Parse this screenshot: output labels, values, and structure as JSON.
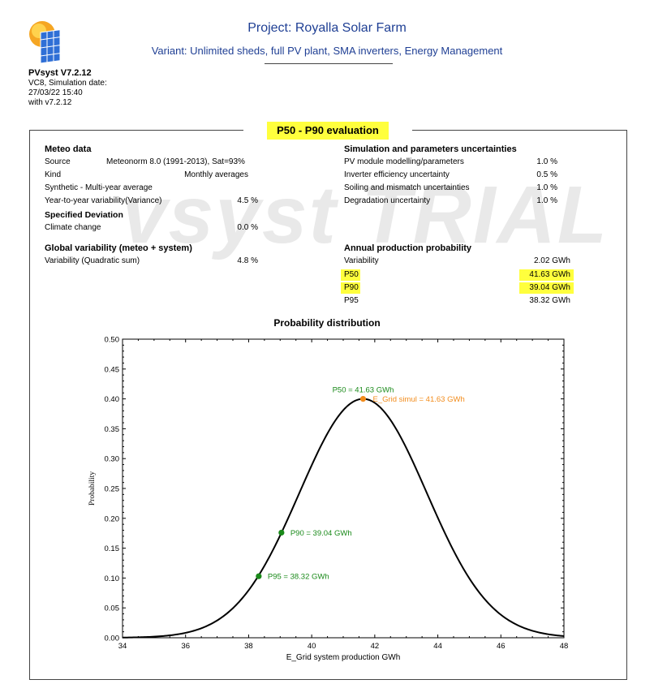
{
  "header": {
    "project_title": "Project: Royalla Solar Farm",
    "variant": "Variant: Unlimited sheds, full PV plant, SMA inverters, Energy Management"
  },
  "app": {
    "name": "PVsyst V7.2.12",
    "line1": "VC8, Simulation date:",
    "line2": "27/03/22 15:40",
    "line3": "with v7.2.12",
    "logo_icon": "pvsyst-logo-icon"
  },
  "section": {
    "title": "P50 - P90 evaluation",
    "watermark": "vsyst TRIAL"
  },
  "meteo": {
    "heading": "Meteo data",
    "source_label": "Source",
    "source_value": "Meteonorm 8.0 (1991-2013), Sat=93%",
    "kind_label": "Kind",
    "kind_value": "Monthly averages",
    "synthetic_label": "Synthetic - Multi-year average",
    "variability_label": "Year-to-year variability(Variance)",
    "variability_value": "4.5 %",
    "specified_heading": "Specified Deviation",
    "climate_label": "Climate change",
    "climate_value": "0.0 %"
  },
  "global": {
    "heading": "Global variability (meteo + system)",
    "label": "Variability (Quadratic sum)",
    "value": "4.8 %"
  },
  "uncertainties": {
    "heading": "Simulation and parameters uncertainties",
    "rows": [
      {
        "label": "PV module modelling/parameters",
        "value": "1.0 %"
      },
      {
        "label": "Inverter efficiency uncertainty",
        "value": "0.5 %"
      },
      {
        "label": "Soiling and mismatch uncertainties",
        "value": "1.0 %"
      },
      {
        "label": "Degradation uncertainty",
        "value": "1.0 %"
      }
    ]
  },
  "annual": {
    "heading": "Annual production probability",
    "rows": [
      {
        "label": "Variability",
        "value": "2.02 GWh"
      },
      {
        "label": "P50",
        "value": "41.63 GWh"
      },
      {
        "label": "P90",
        "value": "39.04 GWh"
      },
      {
        "label": "P95",
        "value": "38.32 GWh"
      }
    ]
  },
  "colors": {
    "highlight": "#ffff3d",
    "title_blue": "#1f3f94",
    "green": "#1a8a1a",
    "orange": "#f28c1c"
  },
  "chart_data": {
    "type": "line",
    "title": "Probability distribution",
    "xlabel": "E_Grid system production GWh",
    "ylabel": "Probability",
    "xlim": [
      34,
      48
    ],
    "ylim": [
      0,
      0.5
    ],
    "x_ticks": [
      "34",
      "36",
      "38",
      "40",
      "42",
      "44",
      "46",
      "48"
    ],
    "y_ticks": [
      "0.00",
      "0.05",
      "0.10",
      "0.15",
      "0.20",
      "0.25",
      "0.30",
      "0.35",
      "0.40",
      "0.45",
      "0.50"
    ],
    "series": [
      {
        "mean": 41.63,
        "std": 2.02,
        "peak": 0.4
      }
    ],
    "points": [
      {
        "x": 41.63,
        "y": 0.4,
        "label": "P50 = 41.63 GWh",
        "color": "orange"
      },
      {
        "x": 39.04,
        "y": 0.176,
        "label": "P90 = 39.04 GWh",
        "color": "green"
      },
      {
        "x": 38.32,
        "y": 0.103,
        "label": "P95 = 38.32 GWh",
        "color": "green"
      }
    ],
    "annotation": "E_Grid simul = 41.63 GWh"
  }
}
